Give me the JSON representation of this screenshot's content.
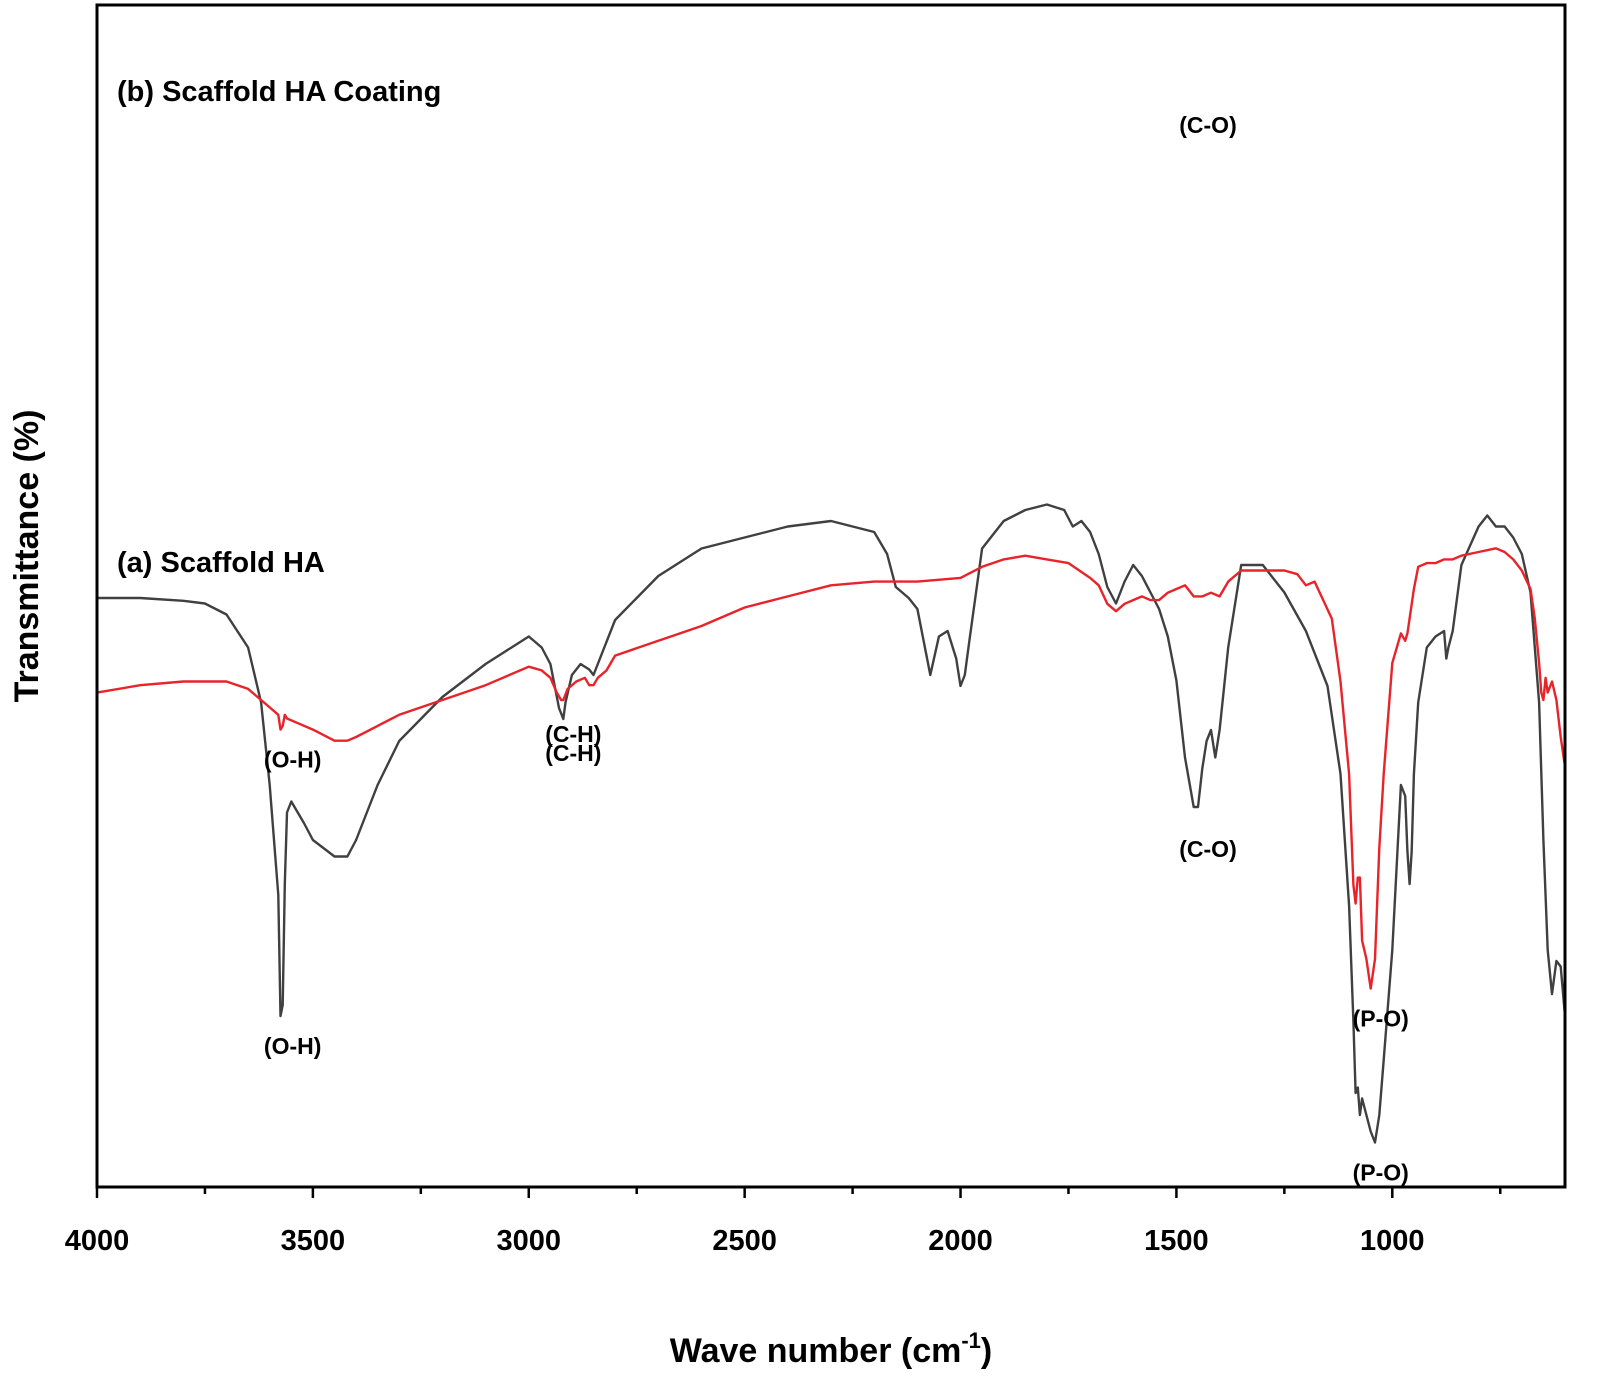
{
  "chart_data": {
    "type": "line",
    "xlabel": "Wave number (cm",
    "xlabel_sup": "-1",
    "xlabel_close": ")",
    "ylabel": "Transmittance (%)",
    "xlim": [
      4000,
      600
    ],
    "x_reversed": true,
    "ticks": [
      "4000",
      "3500",
      "3000",
      "2500",
      "2000",
      "1500",
      "1000"
    ],
    "tick_values": [
      4000,
      3500,
      3000,
      2500,
      2000,
      1500,
      1000
    ],
    "y_ticks_labeled": false,
    "grid": false,
    "series": [
      {
        "name": "(a) Scaffold HA",
        "color": "#404040",
        "x": [
          4000,
          3900,
          3800,
          3750,
          3700,
          3650,
          3620,
          3600,
          3580,
          3575,
          3570,
          3565,
          3560,
          3550,
          3520,
          3500,
          3450,
          3420,
          3400,
          3350,
          3300,
          3200,
          3100,
          3000,
          2970,
          2950,
          2930,
          2920,
          2915,
          2900,
          2880,
          2860,
          2850,
          2840,
          2800,
          2700,
          2600,
          2500,
          2400,
          2300,
          2250,
          2200,
          2170,
          2150,
          2120,
          2100,
          2080,
          2070,
          2050,
          2030,
          2010,
          2000,
          1990,
          1980,
          1950,
          1900,
          1850,
          1800,
          1760,
          1740,
          1720,
          1700,
          1680,
          1660,
          1640,
          1620,
          1600,
          1580,
          1560,
          1540,
          1520,
          1500,
          1480,
          1460,
          1450,
          1440,
          1430,
          1420,
          1410,
          1400,
          1380,
          1350,
          1300,
          1250,
          1200,
          1150,
          1120,
          1100,
          1090,
          1085,
          1080,
          1075,
          1070,
          1060,
          1050,
          1040,
          1030,
          1020,
          1000,
          990,
          980,
          970,
          965,
          960,
          955,
          950,
          940,
          920,
          900,
          880,
          875,
          870,
          860,
          840,
          800,
          780,
          760,
          740,
          720,
          700,
          680,
          660,
          650,
          640,
          630,
          620,
          610,
          600
        ],
        "y": [
          4,
          4,
          3.5,
          3,
          1,
          -5,
          -15,
          -30,
          -50,
          -72,
          -70,
          -48,
          -35,
          -33,
          -37,
          -40,
          -43,
          -43,
          -40,
          -30,
          -22,
          -14,
          -8,
          -3,
          -5,
          -8,
          -16,
          -18,
          -15,
          -10,
          -8,
          -9,
          -10,
          -8,
          0,
          8,
          13,
          15,
          17,
          18,
          17,
          16,
          12,
          6,
          4,
          2,
          -6,
          -10,
          -3,
          -2,
          -7,
          -12,
          -10,
          -4,
          13,
          18,
          20,
          21,
          20,
          17,
          18,
          16,
          12,
          6,
          3,
          7,
          10,
          8,
          5,
          2,
          -3,
          -11,
          -25,
          -34,
          -34,
          -27,
          -22,
          -20,
          -25,
          -20,
          -5,
          10,
          10,
          5,
          -2,
          -12,
          -28,
          -52,
          -73,
          -86,
          -85,
          -90,
          -87,
          -90,
          -93,
          -95,
          -90,
          -80,
          -60,
          -45,
          -30,
          -32,
          -42,
          -48,
          -42,
          -28,
          -15,
          -5,
          -3,
          -2,
          -7,
          -5,
          -2,
          10,
          17,
          19,
          17,
          17,
          15,
          12,
          5,
          -15,
          -40,
          -60,
          -68,
          -62,
          -63,
          -72
        ]
      },
      {
        "name": "(b) Scaffold HA Coating",
        "color": "#e8232a",
        "x": [
          4000,
          3900,
          3800,
          3700,
          3650,
          3620,
          3600,
          3580,
          3575,
          3570,
          3565,
          3560,
          3540,
          3500,
          3450,
          3420,
          3400,
          3350,
          3300,
          3200,
          3100,
          3000,
          2970,
          2950,
          2935,
          2925,
          2920,
          2910,
          2890,
          2870,
          2860,
          2850,
          2840,
          2820,
          2800,
          2700,
          2600,
          2500,
          2400,
          2300,
          2200,
          2100,
          2000,
          1950,
          1900,
          1850,
          1800,
          1750,
          1700,
          1680,
          1660,
          1640,
          1620,
          1600,
          1580,
          1560,
          1540,
          1520,
          1500,
          1480,
          1460,
          1440,
          1420,
          1400,
          1380,
          1350,
          1300,
          1250,
          1220,
          1200,
          1180,
          1160,
          1140,
          1120,
          1100,
          1090,
          1085,
          1080,
          1075,
          1070,
          1060,
          1050,
          1040,
          1030,
          1020,
          1000,
          980,
          970,
          965,
          960,
          950,
          940,
          920,
          900,
          880,
          870,
          860,
          840,
          800,
          760,
          740,
          720,
          700,
          680,
          670,
          660,
          655,
          650,
          645,
          640,
          630,
          620,
          610,
          600
        ],
        "y": [
          -58,
          -56,
          -55,
          -55,
          -57,
          -60,
          -62,
          -64,
          -68,
          -67,
          -64,
          -65,
          -66,
          -68,
          -71,
          -71,
          -70,
          -67,
          -64,
          -60,
          -56,
          -51,
          -52,
          -54,
          -58,
          -60,
          -60,
          -57,
          -55,
          -54,
          -56,
          -56,
          -54,
          -52,
          -48,
          -44,
          -40,
          -35,
          -32,
          -29,
          -28,
          -28,
          -27,
          -24,
          -22,
          -21,
          -22,
          -23,
          -27,
          -29,
          -34,
          -36,
          -34,
          -33,
          -32,
          -33,
          -33,
          -31,
          -30,
          -29,
          -32,
          -32,
          -31,
          -32,
          -28,
          -25,
          -25,
          -25,
          -26,
          -29,
          -28,
          -33,
          -38,
          -55,
          -80,
          -110,
          -115,
          -108,
          -108,
          -125,
          -130,
          -138,
          -130,
          -100,
          -80,
          -50,
          -42,
          -44,
          -42,
          -38,
          -30,
          -24,
          -23,
          -23,
          -22,
          -22,
          -22,
          -21,
          -20,
          -19,
          -20,
          -22,
          -25,
          -30,
          -38,
          -50,
          -58,
          -60,
          -54,
          -58,
          -55,
          -60,
          -70,
          -78
        ]
      }
    ],
    "annotations": [
      {
        "text": "(b) Scaffold HA Coating",
        "role": "series-label",
        "series": 1
      },
      {
        "text": "(O-H)",
        "series": 1,
        "wn": 3570
      },
      {
        "text": "(C-H)",
        "series": 1,
        "wn": 2920
      },
      {
        "text": "(C-O)",
        "series": 1,
        "wn": 1450
      },
      {
        "text": "(P-O)",
        "series": 1,
        "wn": 1050
      },
      {
        "text": "(a) Scaffold HA",
        "role": "series-label",
        "series": 0
      },
      {
        "text": "(O-H)",
        "series": 0,
        "wn": 3570
      },
      {
        "text": "(C-H)",
        "series": 0,
        "wn": 2920
      },
      {
        "text": "(C-O)",
        "series": 0,
        "wn": 1450
      },
      {
        "text": "(P-O)",
        "series": 0,
        "wn": 1050
      }
    ]
  }
}
